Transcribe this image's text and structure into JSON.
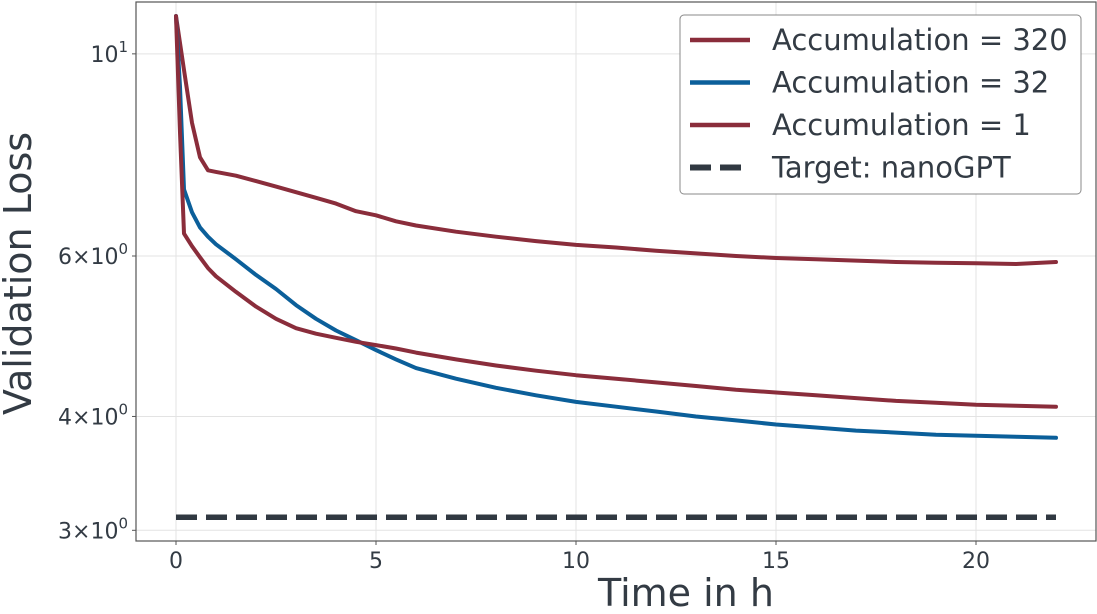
{
  "colors": {
    "acc320": "#8a2d3b",
    "acc32": "#0b5f9a",
    "acc1": "#8a2d3b",
    "target": "#303841",
    "text": "#333b44",
    "grid": "#e3e3e3",
    "frame": "#555555"
  },
  "chart_data": {
    "type": "line",
    "title": "",
    "xlabel": "Time in h",
    "ylabel": "Validation Loss",
    "xlim": [
      -1,
      23
    ],
    "ylim": [
      2.92,
      11.4
    ],
    "yscale": "log",
    "grid": true,
    "legend_position": "top-right",
    "x_ticks": [
      0,
      5,
      10,
      15,
      20
    ],
    "x_tick_labels": [
      "0",
      "5",
      "10",
      "15",
      "20"
    ],
    "y_ticks": [
      {
        "value": 10,
        "base": "10",
        "exp": "1",
        "mult": ""
      },
      {
        "value": 6,
        "base": "10",
        "exp": "0",
        "mult": "6"
      },
      {
        "value": 4,
        "base": "10",
        "exp": "0",
        "mult": "4"
      },
      {
        "value": 3,
        "base": "10",
        "exp": "0",
        "mult": "3"
      }
    ],
    "series": [
      {
        "name": "Accumulation = 320",
        "color_key": "acc320",
        "dashed": false,
        "x": [
          0,
          0.2,
          0.4,
          0.6,
          0.8,
          1,
          1.5,
          2,
          2.5,
          3,
          3.5,
          4,
          4.5,
          5,
          5.5,
          6,
          7,
          8,
          9,
          10,
          11,
          12,
          13,
          14,
          15,
          16,
          17,
          18,
          19,
          20,
          21,
          22
        ],
        "y": [
          11,
          9.6,
          8.4,
          7.7,
          7.45,
          7.42,
          7.35,
          7.25,
          7.15,
          7.05,
          6.95,
          6.85,
          6.72,
          6.65,
          6.55,
          6.48,
          6.38,
          6.3,
          6.23,
          6.17,
          6.13,
          6.08,
          6.04,
          6.0,
          5.97,
          5.95,
          5.93,
          5.91,
          5.9,
          5.89,
          5.88,
          5.91
        ]
      },
      {
        "name": "Accumulation = 32",
        "color_key": "acc32",
        "dashed": false,
        "x": [
          0,
          0.1,
          0.2,
          0.4,
          0.6,
          0.8,
          1,
          1.5,
          2,
          2.5,
          3,
          3.5,
          4,
          4.5,
          5,
          5.5,
          6,
          7,
          8,
          9,
          10,
          11,
          12,
          13,
          14,
          15,
          16,
          17,
          18,
          19,
          20,
          21,
          22
        ],
        "y": [
          11,
          9.2,
          7.1,
          6.7,
          6.45,
          6.3,
          6.18,
          5.95,
          5.72,
          5.52,
          5.3,
          5.12,
          4.97,
          4.85,
          4.73,
          4.62,
          4.52,
          4.4,
          4.3,
          4.22,
          4.15,
          4.1,
          4.05,
          4.0,
          3.96,
          3.92,
          3.89,
          3.86,
          3.84,
          3.82,
          3.81,
          3.8,
          3.79
        ]
      },
      {
        "name": "Accumulation = 1",
        "color_key": "acc1",
        "dashed": false,
        "x": [
          0,
          0.1,
          0.2,
          0.4,
          0.6,
          0.8,
          1,
          1.5,
          2,
          2.5,
          3,
          3.5,
          4,
          4.5,
          5,
          5.5,
          6,
          7,
          8,
          9,
          10,
          11,
          12,
          13,
          14,
          15,
          16,
          17,
          18,
          19,
          20,
          21,
          22
        ],
        "y": [
          11,
          8.2,
          6.35,
          6.15,
          5.98,
          5.82,
          5.7,
          5.48,
          5.28,
          5.12,
          5.0,
          4.93,
          4.88,
          4.83,
          4.79,
          4.75,
          4.7,
          4.62,
          4.55,
          4.49,
          4.44,
          4.4,
          4.36,
          4.32,
          4.28,
          4.25,
          4.22,
          4.19,
          4.16,
          4.14,
          4.12,
          4.11,
          4.1
        ]
      },
      {
        "name": "Target: nanoGPT",
        "color_key": "target",
        "dashed": true,
        "x": [
          0,
          22
        ],
        "y": [
          3.1,
          3.1
        ]
      }
    ]
  }
}
